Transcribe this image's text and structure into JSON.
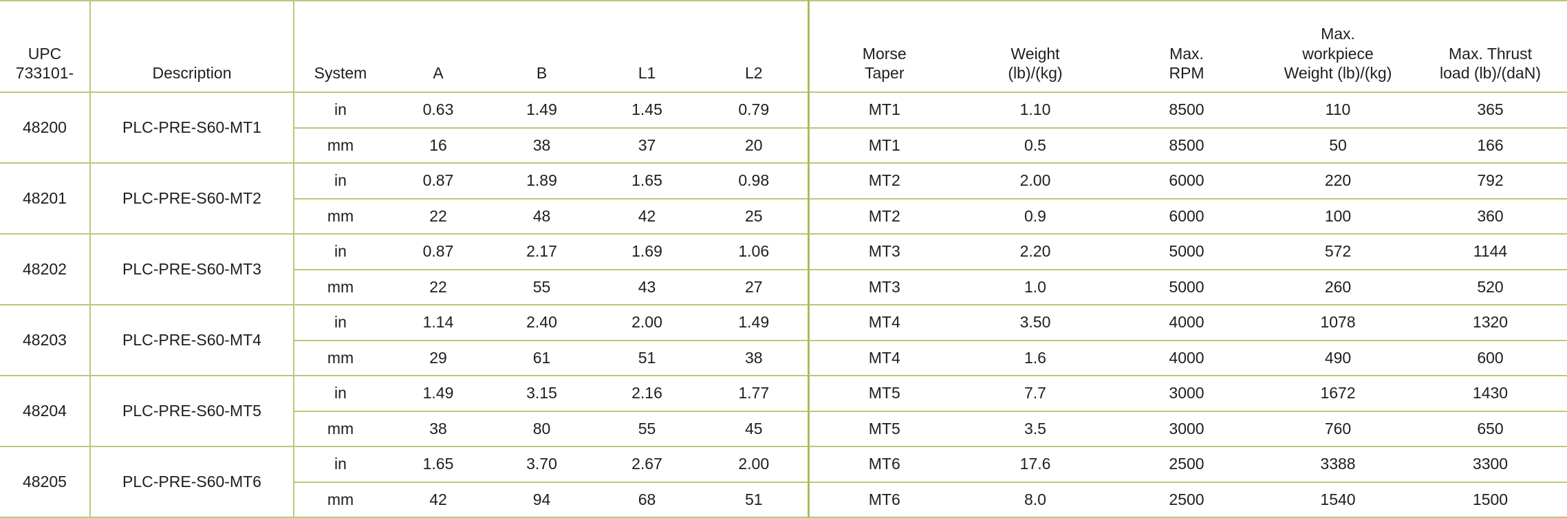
{
  "columns": {
    "upc": [
      "UPC",
      "733101-"
    ],
    "description": "Description",
    "system": "System",
    "a": "A",
    "b": "B",
    "l1": "L1",
    "l2": "L2",
    "morse_taper": [
      "Morse",
      "Taper"
    ],
    "weight": [
      "Weight",
      "(lb)/(kg)"
    ],
    "max_rpm": [
      "Max.",
      "RPM"
    ],
    "max_workpiece_weight": [
      "Max.",
      "workpiece",
      "Weight (lb)/(kg)"
    ],
    "max_thrust_load": [
      "Max. Thrust",
      "load (lb)/(daN)"
    ]
  },
  "rows": [
    {
      "upc": "48200",
      "description": "PLC-PRE-S60-MT1",
      "lines": [
        {
          "system": "in",
          "a": "0.63",
          "b": "1.49",
          "l1": "1.45",
          "l2": "0.79",
          "morse": "MT1",
          "weight": "1.10",
          "rpm": "8500",
          "workpiece": "110",
          "thrust": "365"
        },
        {
          "system": "mm",
          "a": "16",
          "b": "38",
          "l1": "37",
          "l2": "20",
          "morse": "MT1",
          "weight": "0.5",
          "rpm": "8500",
          "workpiece": "50",
          "thrust": "166"
        }
      ]
    },
    {
      "upc": "48201",
      "description": "PLC-PRE-S60-MT2",
      "lines": [
        {
          "system": "in",
          "a": "0.87",
          "b": "1.89",
          "l1": "1.65",
          "l2": "0.98",
          "morse": "MT2",
          "weight": "2.00",
          "rpm": "6000",
          "workpiece": "220",
          "thrust": "792"
        },
        {
          "system": "mm",
          "a": "22",
          "b": "48",
          "l1": "42",
          "l2": "25",
          "morse": "MT2",
          "weight": "0.9",
          "rpm": "6000",
          "workpiece": "100",
          "thrust": "360"
        }
      ]
    },
    {
      "upc": "48202",
      "description": "PLC-PRE-S60-MT3",
      "lines": [
        {
          "system": "in",
          "a": "0.87",
          "b": "2.17",
          "l1": "1.69",
          "l2": "1.06",
          "morse": "MT3",
          "weight": "2.20",
          "rpm": "5000",
          "workpiece": "572",
          "thrust": "1144"
        },
        {
          "system": "mm",
          "a": "22",
          "b": "55",
          "l1": "43",
          "l2": "27",
          "morse": "MT3",
          "weight": "1.0",
          "rpm": "5000",
          "workpiece": "260",
          "thrust": "520"
        }
      ]
    },
    {
      "upc": "48203",
      "description": "PLC-PRE-S60-MT4",
      "lines": [
        {
          "system": "in",
          "a": "1.14",
          "b": "2.40",
          "l1": "2.00",
          "l2": "1.49",
          "morse": "MT4",
          "weight": "3.50",
          "rpm": "4000",
          "workpiece": "1078",
          "thrust": "1320"
        },
        {
          "system": "mm",
          "a": "29",
          "b": "61",
          "l1": "51",
          "l2": "38",
          "morse": "MT4",
          "weight": "1.6",
          "rpm": "4000",
          "workpiece": "490",
          "thrust": "600"
        }
      ]
    },
    {
      "upc": "48204",
      "description": "PLC-PRE-S60-MT5",
      "lines": [
        {
          "system": "in",
          "a": "1.49",
          "b": "3.15",
          "l1": "2.16",
          "l2": "1.77",
          "morse": "MT5",
          "weight": "7.7",
          "rpm": "3000",
          "workpiece": "1672",
          "thrust": "1430"
        },
        {
          "system": "mm",
          "a": "38",
          "b": "80",
          "l1": "55",
          "l2": "45",
          "morse": "MT5",
          "weight": "3.5",
          "rpm": "3000",
          "workpiece": "760",
          "thrust": "650"
        }
      ]
    },
    {
      "upc": "48205",
      "description": "PLC-PRE-S60-MT6",
      "lines": [
        {
          "system": "in",
          "a": "1.65",
          "b": "3.70",
          "l1": "2.67",
          "l2": "2.00",
          "morse": "MT6",
          "weight": "17.6",
          "rpm": "2500",
          "workpiece": "3388",
          "thrust": "3300"
        },
        {
          "system": "mm",
          "a": "42",
          "b": "94",
          "l1": "68",
          "l2": "51",
          "morse": "MT6",
          "weight": "8.0",
          "rpm": "2500",
          "workpiece": "1540",
          "thrust": "1500"
        }
      ]
    }
  ]
}
